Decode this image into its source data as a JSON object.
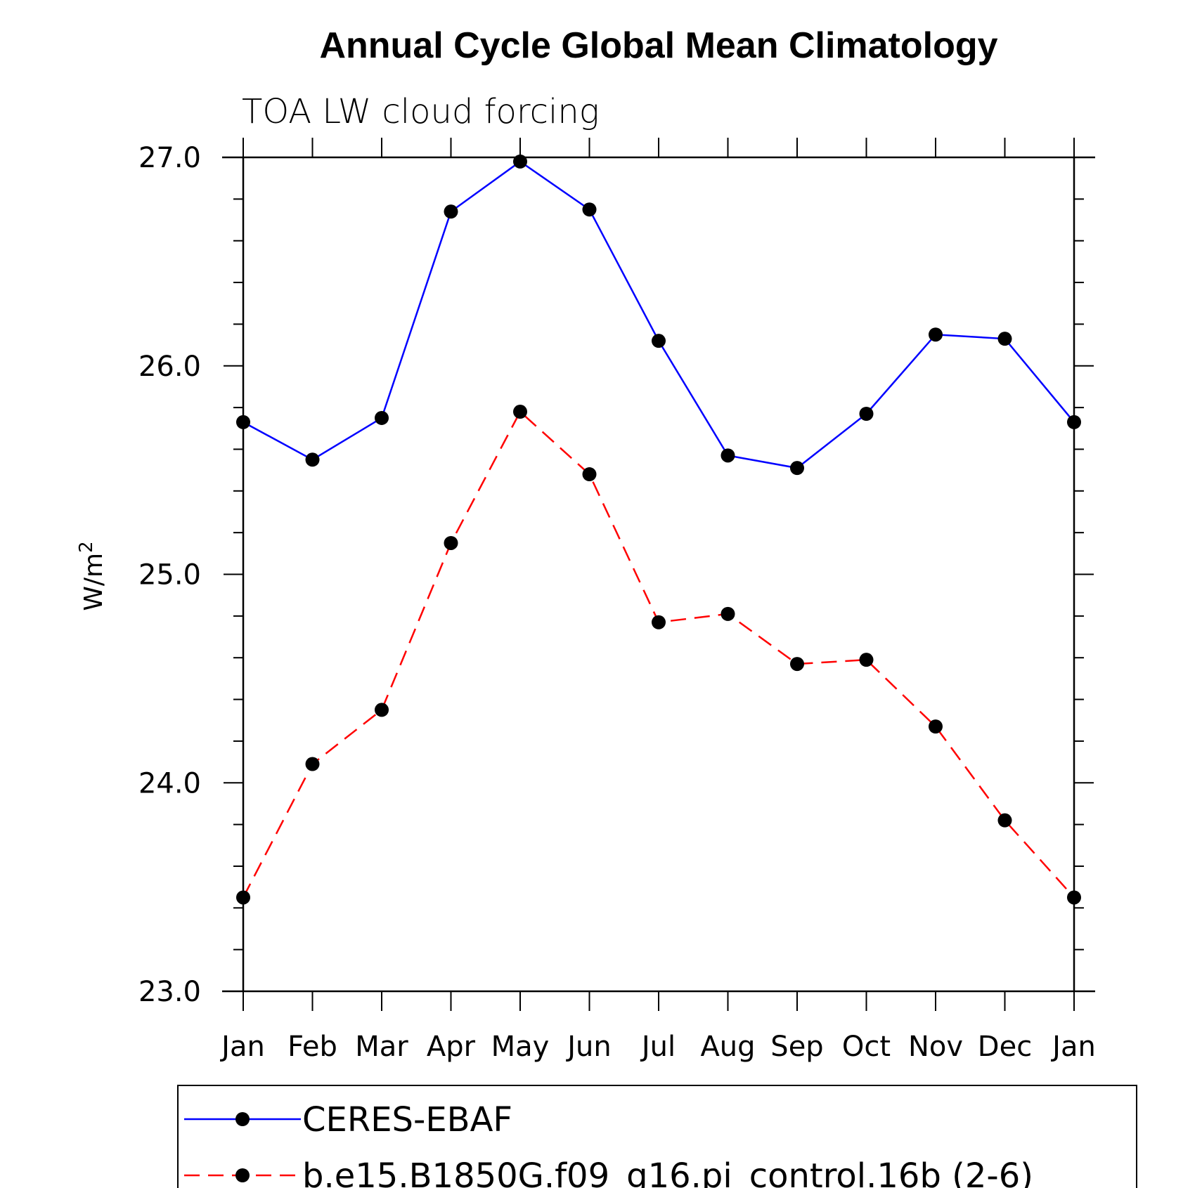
{
  "chart_data": {
    "type": "line",
    "title": "Annual Cycle Global Mean Climatology",
    "subtitle": "TOA LW cloud forcing",
    "ylabel": "W/m",
    "ylabel_superscript": "2",
    "xlabel": "",
    "ylim": [
      23.0,
      27.0
    ],
    "yticks": [
      "23.0",
      "24.0",
      "25.0",
      "26.0",
      "27.0"
    ],
    "categories": [
      "Jan",
      "Feb",
      "Mar",
      "Apr",
      "May",
      "Jun",
      "Jul",
      "Aug",
      "Sep",
      "Oct",
      "Nov",
      "Dec",
      "Jan"
    ],
    "series": [
      {
        "name": "CERES-EBAF",
        "color": "#0000ff",
        "dash": "solid",
        "values": [
          25.73,
          25.55,
          25.75,
          26.74,
          26.98,
          26.75,
          26.12,
          25.57,
          25.51,
          25.77,
          26.15,
          26.13,
          25.73
        ]
      },
      {
        "name": "b.e15.B1850G.f09_g16.pi_control.16b (2-6)",
        "color": "#ff0000",
        "dash": "dashed",
        "values": [
          23.45,
          24.09,
          24.35,
          25.15,
          25.78,
          25.48,
          24.77,
          24.81,
          24.57,
          24.59,
          24.27,
          23.82,
          23.45
        ]
      }
    ]
  }
}
